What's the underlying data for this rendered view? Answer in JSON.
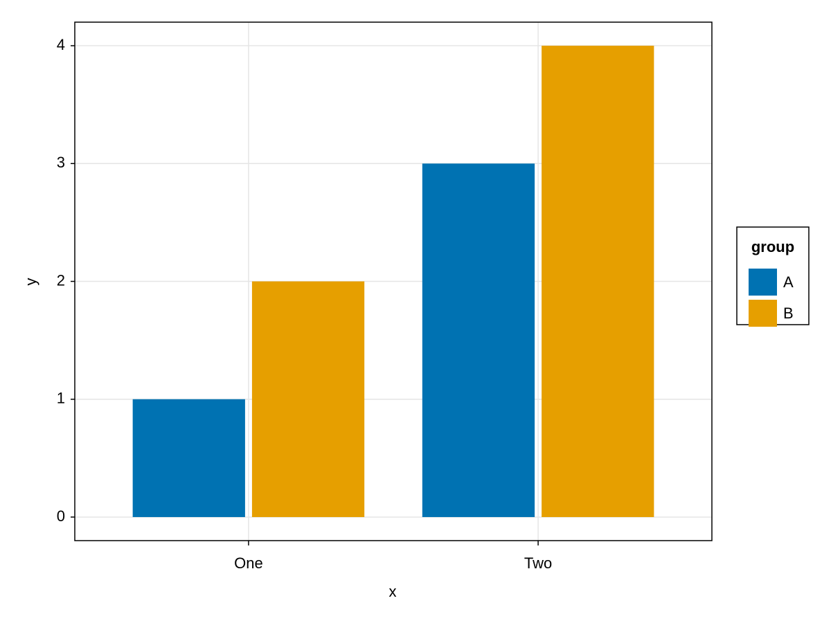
{
  "chart_data": {
    "type": "bar",
    "x_label": "x",
    "y_label": "y",
    "categories": [
      "One",
      "Two"
    ],
    "series": [
      {
        "name": "A",
        "color": "#0072b2",
        "values": [
          1,
          3
        ]
      },
      {
        "name": "B",
        "color": "#e69f00",
        "values": [
          2,
          4
        ]
      }
    ],
    "ylim": [
      -0.2,
      4.2
    ],
    "yticks": [
      0,
      1,
      2,
      3,
      4
    ],
    "grid": true,
    "legend_title": "group",
    "legend_position": "right"
  }
}
